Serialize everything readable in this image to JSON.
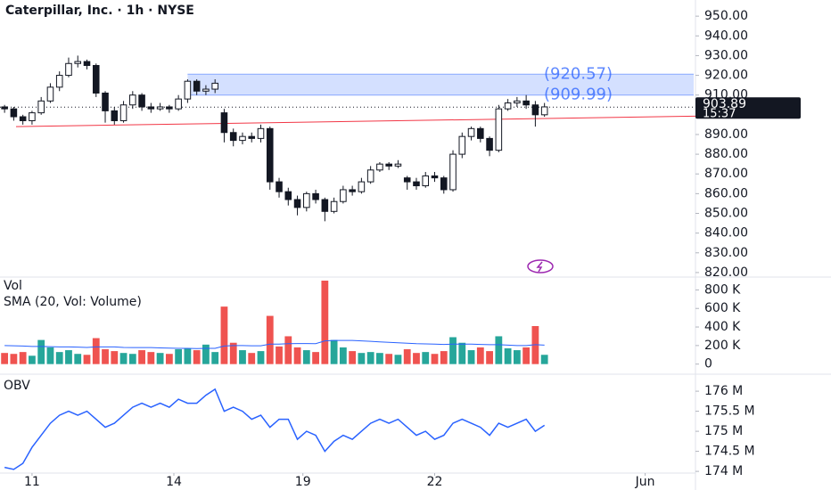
{
  "chart_data": {
    "type": "candlestick",
    "title": "Caterpillar, Inc. · 1h · NYSE",
    "xlim": [
      -0.5,
      75.5
    ],
    "xticks": [
      {
        "value": 3,
        "label": "11"
      },
      {
        "value": 18.5,
        "label": "14"
      },
      {
        "value": 32.6,
        "label": "19"
      },
      {
        "value": 47,
        "label": "22"
      },
      {
        "value": 70,
        "label": "Jun"
      }
    ],
    "open": [
      904,
      903,
      899,
      897,
      901,
      907,
      914,
      920,
      926,
      927,
      925,
      911,
      902,
      897,
      905,
      910,
      904,
      903,
      904,
      903,
      908,
      917,
      912,
      913,
      901,
      891,
      887,
      889,
      888,
      893,
      866,
      861,
      857,
      853,
      860,
      857,
      851,
      856,
      862,
      861,
      866,
      872,
      875,
      874,
      868,
      866,
      864,
      869,
      868,
      862,
      880,
      889,
      893,
      888,
      882,
      903,
      906,
      907,
      905,
      900
    ],
    "high": [
      905,
      904,
      900,
      902,
      909,
      916,
      922,
      929,
      930,
      928,
      926,
      912,
      904,
      907,
      912,
      911,
      906,
      906,
      905,
      910,
      918,
      918,
      915,
      918,
      903,
      893,
      891,
      891,
      895,
      894,
      868,
      863,
      859,
      861,
      862,
      858,
      858,
      864,
      864,
      868,
      874,
      876,
      876,
      877,
      869,
      868,
      871,
      871,
      869,
      882,
      891,
      894,
      894,
      889,
      905,
      908,
      909,
      910,
      907,
      906
    ],
    "low": [
      901,
      897,
      895,
      895,
      900,
      906,
      912,
      919,
      924,
      923,
      909,
      896,
      895,
      896,
      903,
      902,
      901,
      902,
      901,
      902,
      906,
      910,
      910,
      911,
      886,
      884,
      885,
      886,
      886,
      862,
      858,
      854,
      849,
      851,
      855,
      846,
      850,
      855,
      859,
      860,
      865,
      871,
      872,
      873,
      862,
      862,
      863,
      866,
      860,
      861,
      878,
      887,
      886,
      879,
      881,
      902,
      904,
      903,
      894,
      899
    ],
    "close": [
      903,
      899,
      897,
      901,
      907,
      914,
      920,
      926,
      927,
      925,
      911,
      902,
      897,
      905,
      910,
      904,
      903,
      904,
      903,
      908,
      917,
      912,
      913,
      916,
      891,
      887,
      889,
      888,
      893,
      866,
      861,
      857,
      853,
      860,
      857,
      851,
      856,
      862,
      861,
      866,
      872,
      875,
      874,
      875,
      866,
      864,
      869,
      868,
      862,
      880,
      889,
      893,
      888,
      882,
      903,
      906,
      907,
      905,
      900,
      904
    ],
    "up_color": "#ffffff",
    "down_color": "#131722",
    "ylim": [
      817.7,
      958.2
    ],
    "yticks": [
      {
        "value": 820,
        "label": "820.00"
      },
      {
        "value": 830,
        "label": "830.00"
      },
      {
        "value": 840,
        "label": "840.00"
      },
      {
        "value": 850,
        "label": "850.00"
      },
      {
        "value": 860,
        "label": "860.00"
      },
      {
        "value": 870,
        "label": "870.00"
      },
      {
        "value": 880,
        "label": "880.00"
      },
      {
        "value": 890,
        "label": "890.00"
      },
      {
        "value": 900,
        "label": "900.00"
      },
      {
        "value": 910,
        "label": "910.00"
      },
      {
        "value": 920,
        "label": "920.00"
      },
      {
        "value": 930,
        "label": "930.00"
      },
      {
        "value": 940,
        "label": "940.00"
      },
      {
        "value": 950,
        "label": "950.00"
      }
    ],
    "last_price": 903.89,
    "countdown": "15:37",
    "zone": {
      "top": 920.57,
      "bottom": 909.99,
      "top_label": "(920.57)",
      "bottom_label": "(909.99)",
      "start": 20,
      "color": "#2962ff"
    },
    "trendline": {
      "start": [
        0,
        894
      ],
      "end": [
        75.5,
        899.3
      ],
      "color": "#f23645"
    },
    "panes": [
      {
        "type": "bar",
        "title": "Vol",
        "subtitle": "SMA (20, Vol: Volume)",
        "values": [
          120,
          110,
          130,
          90,
          260,
          180,
          130,
          150,
          110,
          100,
          280,
          160,
          140,
          120,
          110,
          150,
          130,
          120,
          110,
          160,
          170,
          150,
          210,
          130,
          620,
          230,
          150,
          120,
          140,
          520,
          190,
          300,
          180,
          150,
          130,
          900,
          260,
          180,
          140,
          120,
          130,
          120,
          110,
          100,
          160,
          120,
          130,
          110,
          140,
          290,
          230,
          150,
          180,
          140,
          300,
          170,
          150,
          180,
          410,
          100
        ],
        "up_color": "#26a69a",
        "down_color": "#ef5350",
        "sma": [
          200,
          198,
          195,
          190,
          190,
          188,
          185,
          185,
          183,
          180,
          185,
          185,
          185,
          180,
          178,
          178,
          178,
          175,
          172,
          170,
          170,
          168,
          170,
          170,
          195,
          200,
          200,
          198,
          198,
          215,
          215,
          220,
          222,
          222,
          220,
          250,
          255,
          255,
          255,
          250,
          245,
          240,
          235,
          230,
          225,
          220,
          218,
          215,
          212,
          215,
          215,
          215,
          212,
          210,
          210,
          205,
          200,
          200,
          210,
          205
        ],
        "sma_color": "#2962ff",
        "ylim": [
          -80,
          900
        ],
        "yticks": [
          0,
          {
            "value": 200,
            "label": "200 K"
          },
          {
            "value": 400,
            "label": "400 K"
          },
          {
            "value": 600,
            "label": "600 K"
          },
          {
            "value": 800,
            "label": "800 K"
          }
        ]
      },
      {
        "type": "line",
        "title": "OBV",
        "values": [
          174.1,
          174.05,
          174.2,
          174.6,
          174.9,
          175.2,
          175.4,
          175.5,
          175.4,
          175.5,
          175.3,
          175.1,
          175.2,
          175.4,
          175.6,
          175.7,
          175.6,
          175.7,
          175.6,
          175.8,
          175.7,
          175.7,
          175.9,
          176.05,
          175.5,
          175.6,
          175.5,
          175.3,
          175.4,
          175.1,
          175.3,
          175.3,
          174.8,
          175.0,
          174.9,
          174.5,
          174.75,
          174.9,
          174.8,
          175.0,
          175.2,
          175.3,
          175.2,
          175.3,
          175.1,
          174.9,
          175.0,
          174.8,
          174.9,
          175.2,
          175.3,
          175.2,
          175.1,
          174.9,
          175.2,
          175.1,
          175.2,
          175.3,
          175.0,
          175.15
        ],
        "color": "#2962ff",
        "ylim": [
          173.58,
          176.38
        ],
        "yticks": [
          {
            "value": 174,
            "label": "174 M"
          },
          {
            "value": 174.5,
            "label": "174.5 M"
          },
          {
            "value": 175,
            "label": "175 M"
          },
          {
            "value": 175.5,
            "label": "175.5 M"
          },
          {
            "value": 176,
            "label": "176 M"
          }
        ]
      }
    ]
  }
}
